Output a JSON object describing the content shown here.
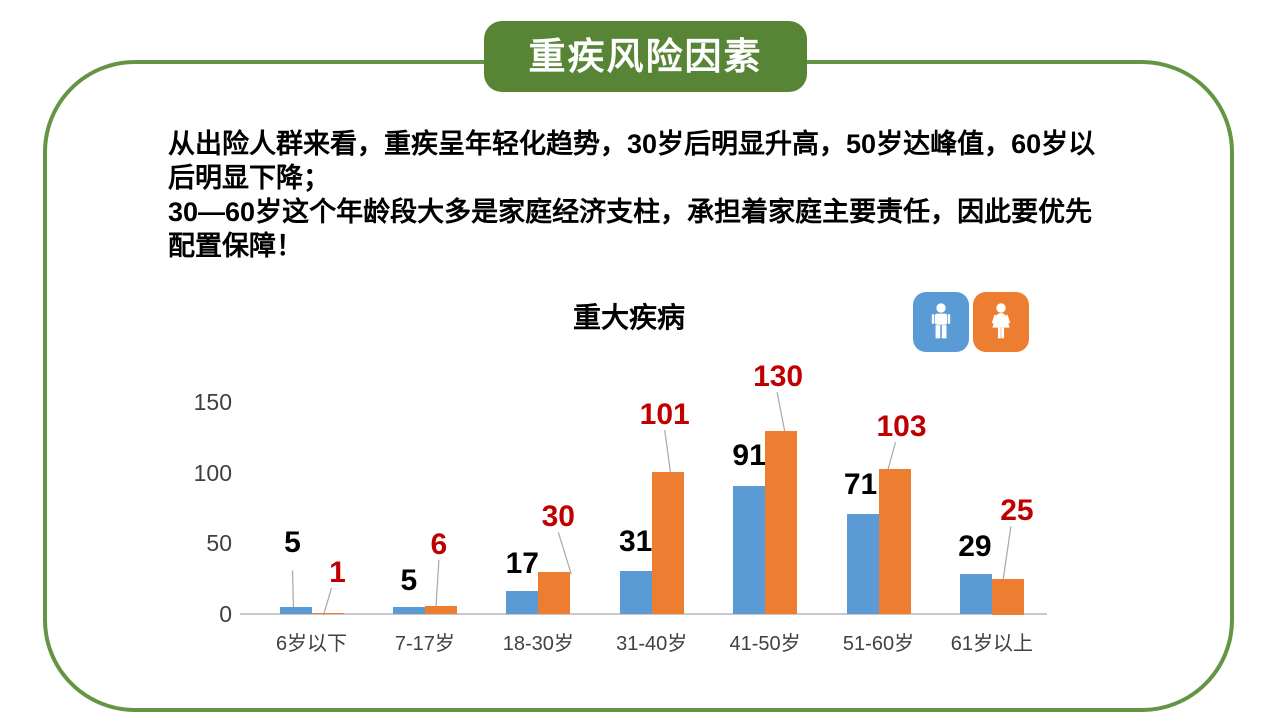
{
  "slide": {
    "banner": {
      "title": "重疾风险因素",
      "bg": "#578535",
      "text_color": "#FFFFFF"
    },
    "border_color": "#649544",
    "body_lines": [
      "从出险人群来看，重疾呈年轻化趋势，30岁后明显升高，50岁达峰值，60岁以",
      "后明显下降；",
      "30—60岁这个年龄段大多是家庭经济支柱，承担着家庭主要责任，因此要优先",
      "配置保障！"
    ]
  },
  "chart_data": {
    "type": "bar",
    "title": "重大疾病",
    "categories": [
      "6岁以下",
      "7-17岁",
      "18-30岁",
      "31-40岁",
      "41-50岁",
      "51-60岁",
      "61岁以上"
    ],
    "series": [
      {
        "name": "male",
        "icon": "male-icon",
        "color": "#5B9BD5",
        "label_color": "#000000",
        "values": [
          5,
          5,
          17,
          31,
          91,
          71,
          29
        ]
      },
      {
        "name": "female",
        "icon": "female-icon",
        "color": "#ED7D31",
        "label_color": "#C00000",
        "values": [
          1,
          6,
          30,
          101,
          130,
          103,
          25
        ]
      }
    ],
    "ylim": [
      0,
      150
    ],
    "yticks": [
      0,
      50,
      100,
      150
    ],
    "grid": false,
    "legend_position": "top-right",
    "axis_text_color": "#404040",
    "axis_line_color": "#C9C9C9",
    "leader_line_color": "#A8A8A8"
  }
}
